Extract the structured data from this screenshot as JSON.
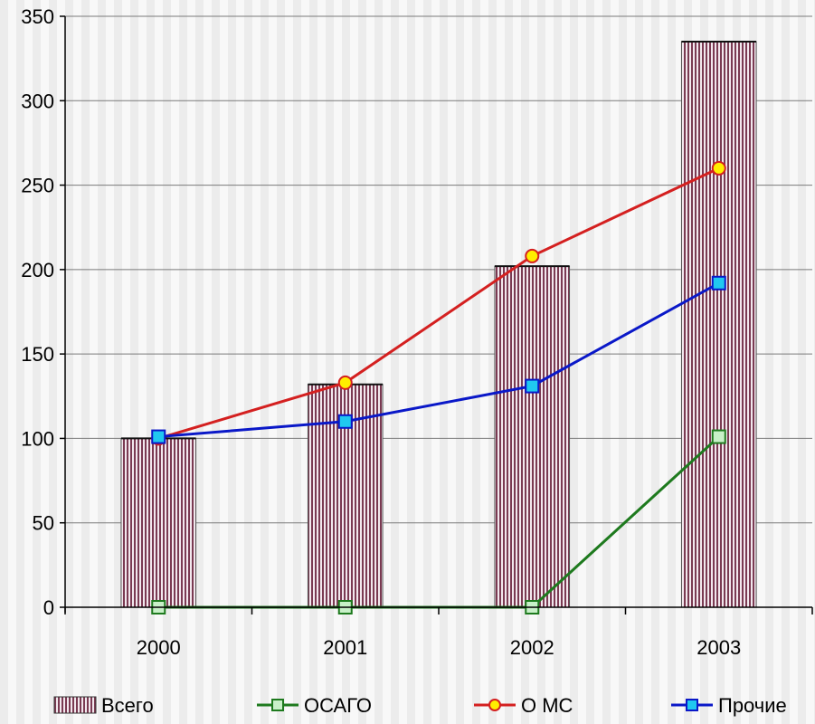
{
  "chart_data": {
    "type": "bar",
    "categories": [
      "2000",
      "2001",
      "2002",
      "2003"
    ],
    "ylim": [
      0,
      350
    ],
    "yticks": [
      0,
      50,
      100,
      150,
      200,
      250,
      300,
      350
    ],
    "grid": true,
    "legend_position": "bottom",
    "series": [
      {
        "name": "Всего",
        "kind": "bar",
        "color": "#7a3a52",
        "values": [
          100,
          132,
          202,
          335
        ]
      },
      {
        "name": "ОСАГО",
        "kind": "line",
        "marker": "square",
        "color": "#1e7a1e",
        "marker_fill": "#c8f0c8",
        "values": [
          0,
          0,
          0,
          101
        ]
      },
      {
        "name": "О МС",
        "kind": "line",
        "marker": "circle",
        "color": "#d42020",
        "marker_fill": "#ffee00",
        "values": [
          100,
          133,
          208,
          260
        ]
      },
      {
        "name": "Прочие",
        "kind": "line",
        "marker": "square",
        "color": "#0a18c8",
        "marker_fill": "#20c8f0",
        "values": [
          101,
          110,
          131,
          192
        ]
      }
    ]
  }
}
